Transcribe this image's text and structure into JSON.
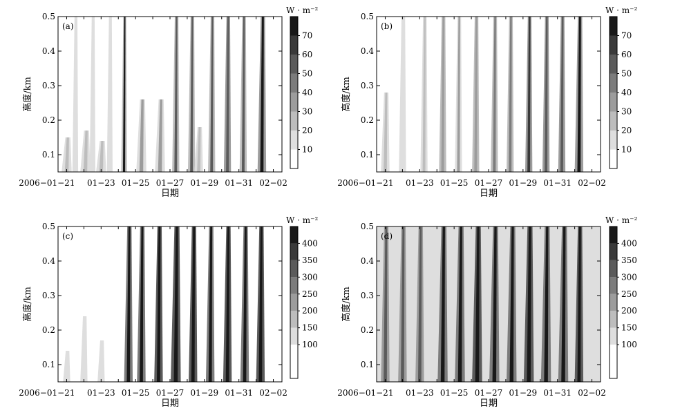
{
  "chart_data": [
    {
      "type": "heatmap",
      "panel_label": "(a)",
      "xlabel": "日期",
      "ylabel": "高度/km",
      "unit": "W · m⁻²",
      "xlim": [
        "2006-01-20T12:00",
        "2006-02-02T12:00"
      ],
      "ylim": [
        0.05,
        0.5
      ],
      "x_tick_labels": [
        "2006−01−21",
        "01−23",
        "01−25",
        "01−27",
        "01−29",
        "01−31",
        "02−02"
      ],
      "y_tick_labels": [
        "0.1",
        "0.2",
        "0.3",
        "0.4",
        "0.5"
      ],
      "y_ticks": [
        0.1,
        0.2,
        0.3,
        0.4,
        0.5
      ],
      "colorbar_levels": [
        10,
        20,
        30,
        40,
        50,
        60,
        70
      ],
      "colorbar_max": 80,
      "background_level": 0,
      "bands": [
        {
          "date": "2006-01-21T00:00",
          "width_h": 14,
          "top": 0.15,
          "level": 14,
          "core_level": 22
        },
        {
          "date": "2006-01-21T12:00",
          "width_h": 8,
          "top": 0.5,
          "level": 12,
          "core_level": 14
        },
        {
          "date": "2006-01-22T02:00",
          "width_h": 14,
          "top": 0.17,
          "level": 18,
          "core_level": 24
        },
        {
          "date": "2006-01-22T12:00",
          "width_h": 8,
          "top": 0.5,
          "level": 12,
          "core_level": 14
        },
        {
          "date": "2006-01-23T00:00",
          "width_h": 14,
          "top": 0.14,
          "level": 14,
          "core_level": 20
        },
        {
          "date": "2006-01-23T12:00",
          "width_h": 8,
          "top": 0.5,
          "level": 12,
          "core_level": 14
        },
        {
          "date": "2006-01-24T08:00",
          "width_h": 8,
          "top": 0.5,
          "level": 22,
          "core_level": 70
        },
        {
          "date": "2006-01-25T08:00",
          "width_h": 14,
          "top": 0.26,
          "level": 16,
          "core_level": 30
        },
        {
          "date": "2006-01-26T10:00",
          "width_h": 14,
          "top": 0.26,
          "level": 16,
          "core_level": 30
        },
        {
          "date": "2006-01-27T08:00",
          "width_h": 10,
          "top": 0.5,
          "level": 28,
          "core_level": 55
        },
        {
          "date": "2006-01-28T06:00",
          "width_h": 10,
          "top": 0.5,
          "level": 24,
          "core_level": 50
        },
        {
          "date": "2006-01-28T16:00",
          "width_h": 12,
          "top": 0.18,
          "level": 16,
          "core_level": 22
        },
        {
          "date": "2006-01-29T10:00",
          "width_h": 10,
          "top": 0.5,
          "level": 28,
          "core_level": 55
        },
        {
          "date": "2006-01-30T08:00",
          "width_h": 10,
          "top": 0.5,
          "level": 30,
          "core_level": 58
        },
        {
          "date": "2006-01-31T06:00",
          "width_h": 10,
          "top": 0.5,
          "level": 26,
          "core_level": 55
        },
        {
          "date": "2006-02-01T08:00",
          "width_h": 12,
          "top": 0.5,
          "level": 30,
          "core_level": 72
        }
      ]
    },
    {
      "type": "heatmap",
      "panel_label": "(b)",
      "xlabel": "日期",
      "ylabel": "高度/km",
      "unit": "W · m⁻²",
      "xlim": [
        "2006-01-20T12:00",
        "2006-02-02T12:00"
      ],
      "ylim": [
        0.05,
        0.5
      ],
      "x_tick_labels": [
        "2006−01−21",
        "01−23",
        "01−25",
        "01−27",
        "01−29",
        "01−31",
        "02−02"
      ],
      "y_tick_labels": [
        "0.1",
        "0.2",
        "0.3",
        "0.4",
        "0.5"
      ],
      "y_ticks": [
        0.1,
        0.2,
        0.3,
        0.4,
        0.5
      ],
      "colorbar_levels": [
        10,
        20,
        30,
        40,
        50,
        60,
        70
      ],
      "colorbar_max": 80,
      "background_level": 0,
      "bands": [
        {
          "date": "2006-01-21T00:00",
          "width_h": 12,
          "top": 0.28,
          "level": 14,
          "core_level": 20
        },
        {
          "date": "2006-01-22T00:00",
          "width_h": 10,
          "top": 0.5,
          "level": 12,
          "core_level": 16
        },
        {
          "date": "2006-01-23T06:00",
          "width_h": 10,
          "top": 0.5,
          "level": 16,
          "core_level": 26
        },
        {
          "date": "2006-01-24T08:00",
          "width_h": 10,
          "top": 0.5,
          "level": 22,
          "core_level": 35
        },
        {
          "date": "2006-01-25T06:00",
          "width_h": 10,
          "top": 0.5,
          "level": 18,
          "core_level": 30
        },
        {
          "date": "2006-01-26T06:00",
          "width_h": 10,
          "top": 0.5,
          "level": 22,
          "core_level": 35
        },
        {
          "date": "2006-01-27T08:00",
          "width_h": 10,
          "top": 0.5,
          "level": 22,
          "core_level": 40
        },
        {
          "date": "2006-01-28T06:00",
          "width_h": 10,
          "top": 0.5,
          "level": 26,
          "core_level": 45
        },
        {
          "date": "2006-01-29T08:00",
          "width_h": 10,
          "top": 0.5,
          "level": 34,
          "core_level": 68
        },
        {
          "date": "2006-01-30T08:00",
          "width_h": 10,
          "top": 0.5,
          "level": 30,
          "core_level": 58
        },
        {
          "date": "2006-01-31T06:00",
          "width_h": 10,
          "top": 0.5,
          "level": 30,
          "core_level": 58
        },
        {
          "date": "2006-02-01T06:00",
          "width_h": 12,
          "top": 0.5,
          "level": 34,
          "core_level": 70
        }
      ]
    },
    {
      "type": "heatmap",
      "panel_label": "(c)",
      "xlabel": "日期",
      "ylabel": "高度/km",
      "unit": "W · m⁻²",
      "xlim": [
        "2006-01-20T12:00",
        "2006-02-02T12:00"
      ],
      "ylim": [
        0.05,
        0.5
      ],
      "x_tick_labels": [
        "2006−01−21",
        "01−23",
        "01−25",
        "01−27",
        "01−29",
        "01−31",
        "02−02"
      ],
      "y_tick_labels": [
        "0.1",
        "0.2",
        "0.3",
        "0.4",
        "0.5"
      ],
      "y_ticks": [
        0.1,
        0.2,
        0.3,
        0.4,
        0.5
      ],
      "colorbar_levels": [
        100,
        150,
        200,
        250,
        300,
        350,
        400
      ],
      "colorbar_max": 450,
      "background_level": 0,
      "bands": [
        {
          "date": "2006-01-21T00:00",
          "width_h": 10,
          "top": 0.14,
          "level": 120,
          "core_level": 130
        },
        {
          "date": "2006-01-22T00:00",
          "width_h": 10,
          "top": 0.24,
          "level": 120,
          "core_level": 140
        },
        {
          "date": "2006-01-23T00:00",
          "width_h": 10,
          "top": 0.17,
          "level": 110,
          "core_level": 120
        },
        {
          "date": "2006-01-24T14:00",
          "width_h": 12,
          "top": 0.5,
          "level": 260,
          "core_level": 420
        },
        {
          "date": "2006-01-25T08:00",
          "width_h": 12,
          "top": 0.5,
          "level": 280,
          "core_level": 400
        },
        {
          "date": "2006-01-26T08:00",
          "width_h": 12,
          "top": 0.5,
          "level": 300,
          "core_level": 410
        },
        {
          "date": "2006-01-27T08:00",
          "width_h": 14,
          "top": 0.5,
          "level": 300,
          "core_level": 420
        },
        {
          "date": "2006-01-28T08:00",
          "width_h": 12,
          "top": 0.5,
          "level": 300,
          "core_level": 410
        },
        {
          "date": "2006-01-29T08:00",
          "width_h": 12,
          "top": 0.5,
          "level": 290,
          "core_level": 400
        },
        {
          "date": "2006-01-30T08:00",
          "width_h": 12,
          "top": 0.5,
          "level": 300,
          "core_level": 410
        },
        {
          "date": "2006-01-31T08:00",
          "width_h": 12,
          "top": 0.5,
          "level": 290,
          "core_level": 400
        },
        {
          "date": "2006-02-01T06:00",
          "width_h": 12,
          "top": 0.5,
          "level": 300,
          "core_level": 410
        }
      ]
    },
    {
      "type": "heatmap",
      "panel_label": "(d)",
      "xlabel": "日期",
      "ylabel": "高度/km",
      "unit": "W · m⁻²",
      "xlim": [
        "2006-01-20T12:00",
        "2006-02-02T12:00"
      ],
      "ylim": [
        0.05,
        0.5
      ],
      "x_tick_labels": [
        "2006−01−21",
        "01−23",
        "01−25",
        "01−27",
        "01−29",
        "01−31",
        "02−02"
      ],
      "y_tick_labels": [
        "0.1",
        "0.2",
        "0.3",
        "0.4",
        "0.5"
      ],
      "y_ticks": [
        0.1,
        0.2,
        0.3,
        0.4,
        0.5
      ],
      "colorbar_levels": [
        100,
        150,
        200,
        250,
        300,
        350,
        400
      ],
      "colorbar_max": 450,
      "background_level": 120,
      "bands": [
        {
          "date": "2006-01-21T00:00",
          "width_h": 12,
          "top": 0.5,
          "level": 220,
          "core_level": 320
        },
        {
          "date": "2006-01-22T00:00",
          "width_h": 12,
          "top": 0.5,
          "level": 220,
          "core_level": 320
        },
        {
          "date": "2006-01-23T00:00",
          "width_h": 12,
          "top": 0.5,
          "level": 220,
          "core_level": 300
        },
        {
          "date": "2006-01-24T08:00",
          "width_h": 14,
          "top": 0.5,
          "level": 280,
          "core_level": 400
        },
        {
          "date": "2006-01-25T08:00",
          "width_h": 14,
          "top": 0.5,
          "level": 290,
          "core_level": 410
        },
        {
          "date": "2006-01-26T08:00",
          "width_h": 14,
          "top": 0.5,
          "level": 300,
          "core_level": 410
        },
        {
          "date": "2006-01-27T08:00",
          "width_h": 14,
          "top": 0.5,
          "level": 280,
          "core_level": 400
        },
        {
          "date": "2006-01-28T08:00",
          "width_h": 14,
          "top": 0.5,
          "level": 280,
          "core_level": 400
        },
        {
          "date": "2006-01-29T08:00",
          "width_h": 14,
          "top": 0.5,
          "level": 300,
          "core_level": 410
        },
        {
          "date": "2006-01-30T08:00",
          "width_h": 14,
          "top": 0.5,
          "level": 290,
          "core_level": 400
        },
        {
          "date": "2006-01-31T08:00",
          "width_h": 14,
          "top": 0.5,
          "level": 290,
          "core_level": 400
        },
        {
          "date": "2006-02-01T06:00",
          "width_h": 12,
          "top": 0.5,
          "level": 300,
          "core_level": 420
        }
      ]
    }
  ]
}
